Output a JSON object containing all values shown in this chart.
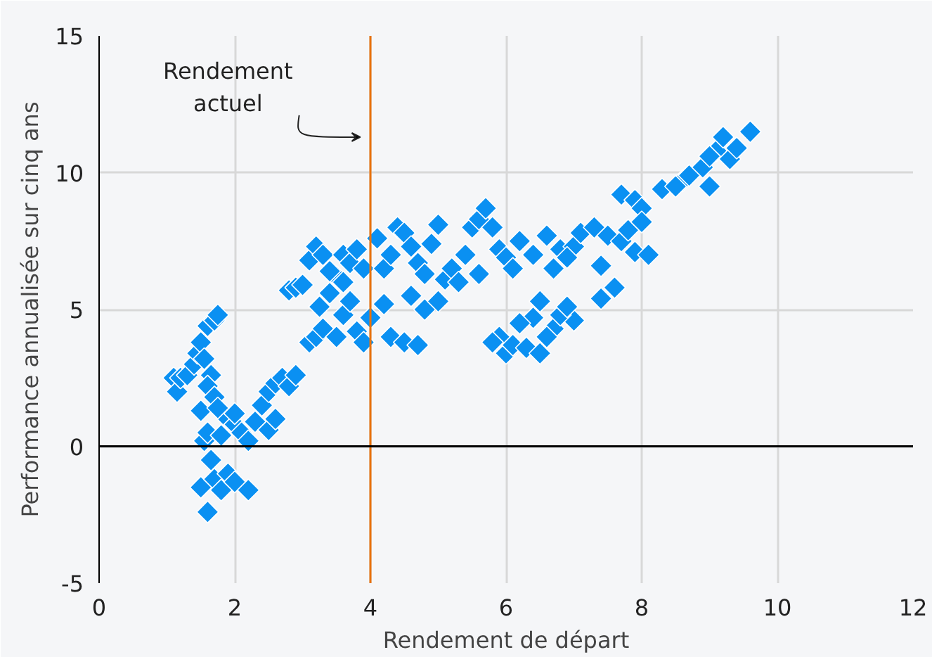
{
  "chart_data": {
    "type": "scatter",
    "xlabel": "Rendement de départ",
    "ylabel": "Performance annualisée sur cinq ans",
    "xlim": [
      0,
      12
    ],
    "xticks": [
      0,
      2,
      4,
      6,
      8,
      10,
      12
    ],
    "ylim": [
      -5,
      15
    ],
    "yticks": [
      -5,
      0,
      5,
      10,
      15
    ],
    "grid": true,
    "marker": "diamond",
    "ref_lines": [
      {
        "axis": "x",
        "value": 4,
        "label": "Rendement\nactuel",
        "color": "#e8720c"
      },
      {
        "axis": "y",
        "value": 0,
        "label": null,
        "color": "#000000"
      }
    ],
    "series": [
      {
        "color": "#0a90f2",
        "x": [
          1.1,
          1.15,
          1.2,
          1.3,
          1.4,
          1.45,
          1.5,
          1.55,
          1.6,
          1.7,
          1.75,
          1.65,
          1.6,
          1.7,
          1.5,
          1.55,
          1.6,
          1.65,
          1.5,
          1.6,
          1.7,
          1.8,
          1.9,
          2.0,
          2.2,
          1.8,
          1.9,
          2.0,
          2.1,
          2.2,
          2.3,
          2.4,
          2.5,
          2.6,
          2.7,
          2.8,
          2.9,
          2.5,
          2.6,
          2.0,
          1.75,
          2.8,
          2.9,
          3.0,
          3.1,
          3.2,
          3.3,
          3.1,
          3.2,
          3.3,
          3.25,
          3.4,
          3.5,
          3.6,
          3.7,
          3.8,
          3.9,
          3.5,
          3.6,
          3.7,
          3.8,
          3.9,
          4.0,
          3.4,
          3.6,
          4.1,
          4.2,
          4.3,
          4.4,
          4.5,
          4.6,
          4.7,
          4.8,
          4.2,
          4.3,
          4.5,
          4.6,
          4.8,
          5.0,
          5.1,
          5.2,
          5.4,
          5.5,
          5.6,
          5.7,
          5.8,
          5.6,
          5.9,
          4.7,
          5.3,
          4.9,
          5.0,
          6.0,
          6.1,
          6.2,
          6.4,
          6.6,
          6.8,
          7.0,
          7.1,
          7.3,
          7.5,
          7.7,
          7.8,
          7.9,
          6.9,
          7.4,
          7.6,
          7.4,
          7.0,
          5.9,
          6.0,
          6.1,
          6.3,
          6.5,
          6.7,
          6.8,
          6.6,
          6.9,
          6.4,
          6.2,
          5.8,
          6.5,
          6.7,
          7.7,
          7.9,
          8.0,
          8.3,
          8.6,
          8.7,
          8.9,
          9.0,
          9.1,
          9.2,
          9.3,
          9.4,
          9.6,
          9.0,
          8.5,
          8.1,
          8.0
        ],
        "values": [
          2.5,
          2.0,
          2.5,
          2.6,
          3.0,
          3.4,
          3.8,
          3.2,
          4.4,
          4.6,
          4.8,
          2.6,
          2.2,
          1.8,
          1.3,
          0.2,
          0.5,
          -0.5,
          -1.5,
          -2.4,
          -1.2,
          -1.6,
          -1.0,
          -1.3,
          -1.6,
          0.4,
          1.0,
          0.8,
          0.5,
          0.2,
          0.9,
          1.5,
          2.0,
          2.3,
          2.5,
          2.2,
          2.6,
          0.6,
          1.0,
          1.2,
          1.4,
          5.7,
          5.8,
          5.9,
          6.8,
          7.3,
          7.0,
          3.8,
          4.0,
          4.3,
          5.1,
          5.6,
          6.2,
          7.0,
          6.7,
          7.2,
          6.5,
          4.0,
          4.8,
          5.3,
          4.2,
          3.8,
          4.7,
          6.4,
          6.0,
          7.6,
          6.5,
          7.0,
          8.0,
          7.8,
          7.3,
          6.7,
          6.3,
          5.2,
          4.0,
          3.8,
          5.5,
          5.0,
          5.3,
          6.1,
          6.5,
          7.0,
          8.0,
          8.3,
          8.7,
          8.0,
          6.3,
          7.2,
          3.7,
          6.0,
          7.4,
          8.1,
          6.9,
          6.5,
          7.5,
          7.0,
          7.7,
          7.2,
          7.3,
          7.8,
          8.0,
          7.7,
          7.5,
          7.9,
          7.1,
          6.9,
          6.6,
          5.8,
          5.4,
          4.6,
          4.0,
          3.4,
          3.7,
          3.6,
          3.4,
          4.3,
          4.8,
          4.0,
          5.1,
          4.7,
          4.5,
          3.8,
          5.3,
          6.5,
          9.2,
          9.0,
          8.7,
          9.4,
          9.7,
          9.9,
          10.2,
          9.5,
          10.8,
          11.3,
          10.5,
          10.9,
          11.5,
          10.6,
          9.5,
          7.0,
          8.2
        ]
      }
    ]
  }
}
